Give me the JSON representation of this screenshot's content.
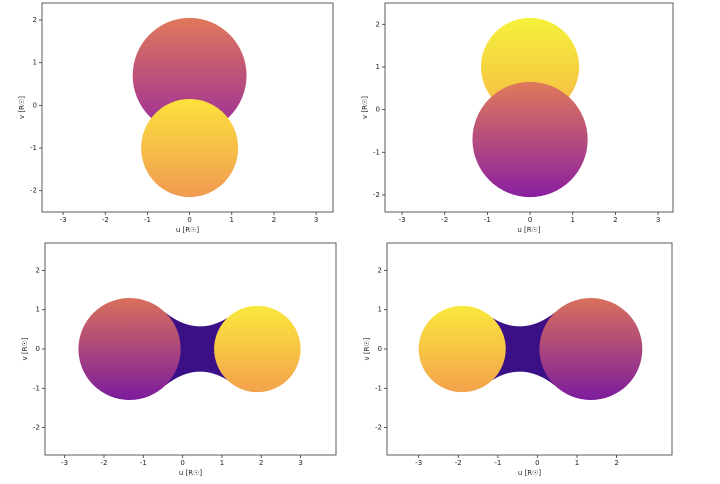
{
  "chart_data": [
    {
      "type": "mesh",
      "xlabel": "u [R☉]",
      "ylabel": "v [R☉]",
      "xlim": [
        -3.5,
        3.4
      ],
      "ylim": [
        -2.5,
        2.4
      ],
      "xticks": [
        -3,
        -2,
        -1,
        0,
        1,
        2,
        3
      ],
      "yticks": [
        -2,
        -1,
        0,
        1,
        2
      ],
      "contact": false,
      "bodies": [
        {
          "u": 0,
          "v": 0.7,
          "r": 1.35,
          "colors": [
            "#e0785a",
            "#9a2c9a"
          ]
        },
        {
          "u": 0,
          "v": -1.0,
          "r": 1.15,
          "colors": [
            "#fde23c",
            "#f09a52"
          ]
        }
      ]
    },
    {
      "type": "mesh",
      "xlabel": "u [R☉]",
      "ylabel": "v [R☉]",
      "xlim": [
        -3.4,
        3.35
      ],
      "ylim": [
        -2.4,
        2.5
      ],
      "xticks": [
        -3,
        -2,
        -1,
        0,
        1,
        2,
        3
      ],
      "yticks": [
        -2,
        -1,
        0,
        1,
        2
      ],
      "contact": false,
      "bodies": [
        {
          "u": 0,
          "v": 1.0,
          "r": 1.15,
          "colors": [
            "#f5f23a",
            "#f6b847"
          ]
        },
        {
          "u": 0,
          "v": -0.7,
          "r": 1.35,
          "colors": [
            "#e07a5a",
            "#8a1fa0"
          ]
        }
      ]
    },
    {
      "type": "mesh",
      "xlabel": "u [R☉]",
      "ylabel": "v [R☉]",
      "xlim": [
        -3.5,
        3.9
      ],
      "ylim": [
        -2.7,
        2.7
      ],
      "xticks": [
        -3,
        -2,
        -1,
        0,
        1,
        2,
        3
      ],
      "yticks": [
        -2,
        -1,
        0,
        1,
        2
      ],
      "contact": true,
      "bodies": [
        {
          "u": -1.35,
          "v": 0,
          "r": 1.3,
          "colors": [
            "#d9705c",
            "#7c1c9c"
          ]
        },
        {
          "u": 1.9,
          "v": 0,
          "r": 1.1,
          "colors": [
            "#f9e83c",
            "#f3a24c"
          ]
        }
      ]
    },
    {
      "type": "mesh",
      "xlabel": "u [R☉]",
      "ylabel": "v [R☉]",
      "xlim": [
        -3.8,
        3.4
      ],
      "ylim": [
        -2.7,
        2.7
      ],
      "xticks": [
        -3,
        -2,
        -1,
        0,
        1,
        2
      ],
      "yticks": [
        -2,
        -1,
        0,
        1,
        2
      ],
      "contact": true,
      "bodies": [
        {
          "u": -1.9,
          "v": 0,
          "r": 1.1,
          "colors": [
            "#f9e83c",
            "#f3a24c"
          ]
        },
        {
          "u": 1.35,
          "v": 0,
          "r": 1.3,
          "colors": [
            "#d9705c",
            "#7c1c9c"
          ]
        }
      ]
    }
  ]
}
